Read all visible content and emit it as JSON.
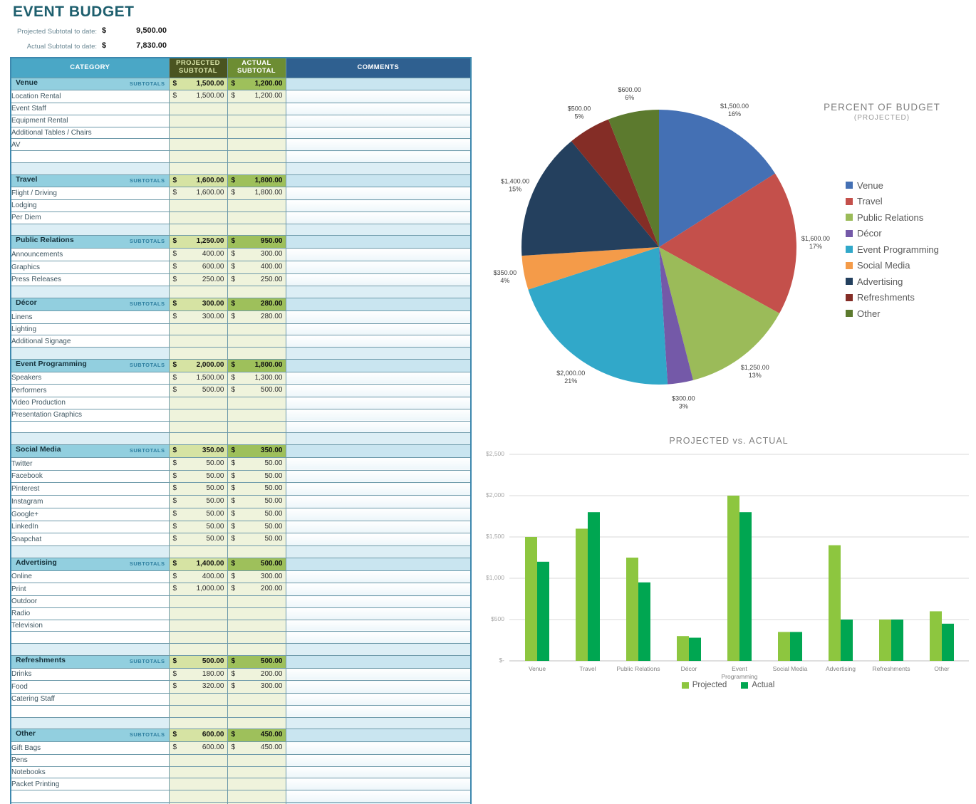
{
  "header": {
    "title": "EVENT BUDGET",
    "projected_label": "Projected Subtotal to date:",
    "projected_currency": "$",
    "projected_value": "9,500.00",
    "actual_label": "Actual Subtotal to date:",
    "actual_currency": "$",
    "actual_value": "7,830.00"
  },
  "table": {
    "currency": "$",
    "subtotals_label": "SUBTOTALS",
    "columns": {
      "category": "CATEGORY",
      "projected": "PROJECTED\nSUBTOTAL",
      "actual": "ACTUAL\nSUBTOTAL",
      "comments": "COMMENTS"
    },
    "sections": [
      {
        "name": "Venue",
        "projected": "1,500.00",
        "actual": "1,200.00",
        "empty_rows": 2,
        "rows": [
          {
            "label": "Location Rental",
            "projected": "1,500.00",
            "actual": "1,200.00"
          },
          {
            "label": "Event Staff",
            "projected": "",
            "actual": ""
          },
          {
            "label": "Equipment Rental",
            "projected": "",
            "actual": ""
          },
          {
            "label": "Additional Tables / Chairs",
            "projected": "",
            "actual": ""
          },
          {
            "label": "AV",
            "projected": "",
            "actual": ""
          }
        ]
      },
      {
        "name": "Travel",
        "projected": "1,600.00",
        "actual": "1,800.00",
        "empty_rows": 1,
        "rows": [
          {
            "label": "Flight / Driving",
            "projected": "1,600.00",
            "actual": "1,800.00"
          },
          {
            "label": "Lodging",
            "projected": "",
            "actual": ""
          },
          {
            "label": "Per Diem",
            "projected": "",
            "actual": ""
          }
        ]
      },
      {
        "name": "Public Relations",
        "projected": "1,250.00",
        "actual": "950.00",
        "empty_rows": 1,
        "rows": [
          {
            "label": "Announcements",
            "projected": "400.00",
            "actual": "300.00"
          },
          {
            "label": "Graphics",
            "projected": "600.00",
            "actual": "400.00"
          },
          {
            "label": "Press Releases",
            "projected": "250.00",
            "actual": "250.00"
          }
        ]
      },
      {
        "name": "Décor",
        "projected": "300.00",
        "actual": "280.00",
        "empty_rows": 1,
        "rows": [
          {
            "label": "Linens",
            "projected": "300.00",
            "actual": "280.00"
          },
          {
            "label": "Lighting",
            "projected": "",
            "actual": ""
          },
          {
            "label": "Additional Signage",
            "projected": "",
            "actual": ""
          }
        ]
      },
      {
        "name": "Event Programming",
        "projected": "2,000.00",
        "actual": "1,800.00",
        "empty_rows": 2,
        "rows": [
          {
            "label": "Speakers",
            "projected": "1,500.00",
            "actual": "1,300.00"
          },
          {
            "label": "Performers",
            "projected": "500.00",
            "actual": "500.00"
          },
          {
            "label": "Video Production",
            "projected": "",
            "actual": ""
          },
          {
            "label": "Presentation Graphics",
            "projected": "",
            "actual": ""
          }
        ]
      },
      {
        "name": "Social Media",
        "projected": "350.00",
        "actual": "350.00",
        "empty_rows": 1,
        "rows": [
          {
            "label": "Twitter",
            "projected": "50.00",
            "actual": "50.00"
          },
          {
            "label": "Facebook",
            "projected": "50.00",
            "actual": "50.00"
          },
          {
            "label": "Pinterest",
            "projected": "50.00",
            "actual": "50.00"
          },
          {
            "label": "Instagram",
            "projected": "50.00",
            "actual": "50.00"
          },
          {
            "label": "Google+",
            "projected": "50.00",
            "actual": "50.00"
          },
          {
            "label": "LinkedIn",
            "projected": "50.00",
            "actual": "50.00"
          },
          {
            "label": "Snapchat",
            "projected": "50.00",
            "actual": "50.00"
          }
        ]
      },
      {
        "name": "Advertising",
        "projected": "1,400.00",
        "actual": "500.00",
        "empty_rows": 2,
        "rows": [
          {
            "label": "Online",
            "projected": "400.00",
            "actual": "300.00"
          },
          {
            "label": "Print",
            "projected": "1,000.00",
            "actual": "200.00"
          },
          {
            "label": "Outdoor",
            "projected": "",
            "actual": ""
          },
          {
            "label": "Radio",
            "projected": "",
            "actual": ""
          },
          {
            "label": "Television",
            "projected": "",
            "actual": ""
          }
        ]
      },
      {
        "name": "Refreshments",
        "projected": "500.00",
        "actual": "500.00",
        "empty_rows": 2,
        "rows": [
          {
            "label": "Drinks",
            "projected": "180.00",
            "actual": "200.00"
          },
          {
            "label": "Food",
            "projected": "320.00",
            "actual": "300.00"
          },
          {
            "label": "Catering Staff",
            "projected": "",
            "actual": ""
          }
        ]
      },
      {
        "name": "Other",
        "projected": "600.00",
        "actual": "450.00",
        "empty_rows": 2,
        "rows": [
          {
            "label": "Gift Bags",
            "projected": "600.00",
            "actual": "450.00"
          },
          {
            "label": "Pens",
            "projected": "",
            "actual": ""
          },
          {
            "label": "Notebooks",
            "projected": "",
            "actual": ""
          },
          {
            "label": "Packet Printing",
            "projected": "",
            "actual": ""
          }
        ]
      }
    ]
  },
  "chart_data": [
    {
      "type": "pie",
      "title": "PERCENT OF BUDGET",
      "subtitle": "(PROJECTED)",
      "legend_position": "right",
      "slices": [
        {
          "label": "Venue",
          "value": 1500,
          "pct": 16,
          "value_label": "$1,500.00",
          "pct_label": "16%",
          "color": "#4470B4"
        },
        {
          "label": "Travel",
          "value": 1600,
          "pct": 17,
          "value_label": "$1,600.00",
          "pct_label": "17%",
          "color": "#C4504B"
        },
        {
          "label": "Public Relations",
          "value": 1250,
          "pct": 13,
          "value_label": "$1,250.00",
          "pct_label": "13%",
          "color": "#9BBB59"
        },
        {
          "label": "Décor",
          "value": 300,
          "pct": 3,
          "value_label": "$300.00",
          "pct_label": "3%",
          "color": "#7459A8"
        },
        {
          "label": "Event Programming",
          "value": 2000,
          "pct": 21,
          "value_label": "$2,000.00",
          "pct_label": "21%",
          "color": "#31A8C9"
        },
        {
          "label": "Social Media",
          "value": 350,
          "pct": 4,
          "value_label": "$350.00",
          "pct_label": "4%",
          "color": "#F49B49"
        },
        {
          "label": "Advertising",
          "value": 1400,
          "pct": 15,
          "value_label": "$1,400.00",
          "pct_label": "15%",
          "color": "#24405E"
        },
        {
          "label": "Refreshments",
          "value": 500,
          "pct": 5,
          "value_label": "$500.00",
          "pct_label": "5%",
          "color": "#842D26"
        },
        {
          "label": "Other",
          "value": 600,
          "pct": 6,
          "value_label": "$600.00",
          "pct_label": "6%",
          "color": "#5C7A2E"
        }
      ]
    },
    {
      "type": "bar",
      "title": "PROJECTED vs. ACTUAL",
      "categories": [
        "Venue",
        "Travel",
        "Public Relations",
        "Décor",
        "Event\nProgramming",
        "Social Media",
        "Advertising",
        "Refreshments",
        "Other"
      ],
      "series": [
        {
          "name": "Projected",
          "color": "#8DC63F",
          "values": [
            1500,
            1600,
            1250,
            300,
            2000,
            350,
            1400,
            500,
            600
          ]
        },
        {
          "name": "Actual",
          "color": "#00A651",
          "values": [
            1200,
            1800,
            950,
            280,
            1800,
            350,
            500,
            500,
            450
          ]
        }
      ],
      "ylim": [
        0,
        2500
      ],
      "ytick_values": [
        0,
        500,
        1000,
        1500,
        2000,
        2500
      ],
      "ytick_labels": [
        "$-",
        "$500",
        "$1,000",
        "$1,500",
        "$2,000",
        "$2,500"
      ],
      "grid": true,
      "legend_position": "bottom"
    }
  ]
}
